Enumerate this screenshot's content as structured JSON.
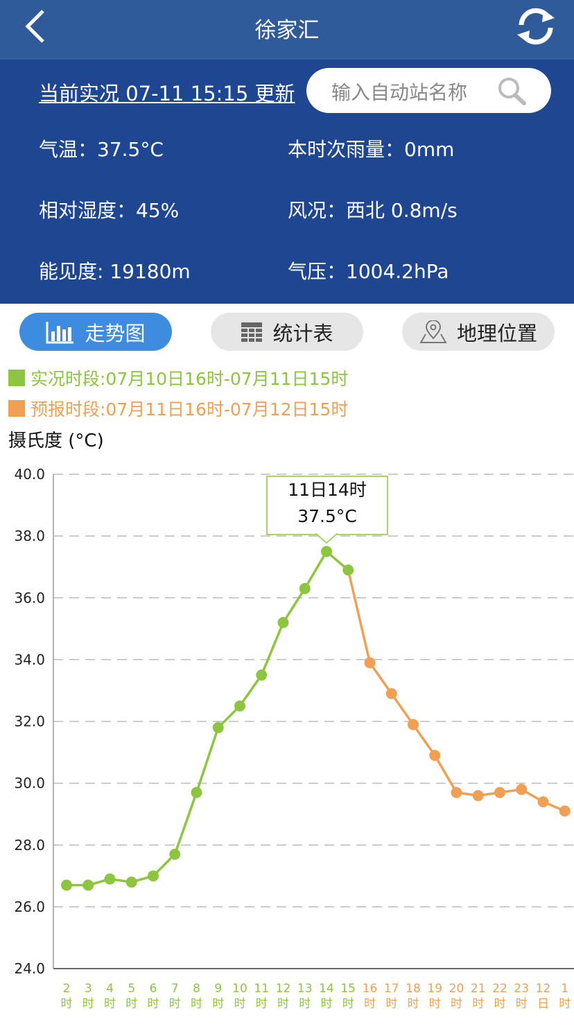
{
  "header": {
    "title": "徐家汇"
  },
  "status": {
    "update": "当前实况 07-11 15:15 更新",
    "search_placeholder": "输入自动站名称"
  },
  "observations": [
    [
      "气温：37.5°C",
      "本时次雨量：0mm"
    ],
    [
      "相对湿度：45%",
      "风况：西北 0.8m/s"
    ],
    [
      "能见度: 19180m",
      "气压：1004.2hPa"
    ]
  ],
  "tabs": [
    "走势图",
    "统计表",
    "地理位置"
  ],
  "chart_data": {
    "type": "line",
    "ylabel": "摄氏度 (°C)",
    "categories": [
      "2\n时",
      "3\n时",
      "4\n时",
      "5\n时",
      "6\n时",
      "7\n时",
      "8\n时",
      "9\n时",
      "10\n时",
      "11\n时",
      "12\n时",
      "13\n时",
      "14\n时",
      "15\n时",
      "16\n时",
      "17\n时",
      "18\n时",
      "19\n时",
      "20\n时",
      "21\n时",
      "22\n时",
      "23\n时",
      "12\n日",
      "1\n时"
    ],
    "series": [
      {
        "name": "实况时段:07月10日16时-07月11日15时",
        "color": "#8dc540",
        "values": [
          26.7,
          26.7,
          26.9,
          26.8,
          27.0,
          27.7,
          29.7,
          31.8,
          32.5,
          33.5,
          35.2,
          36.3,
          37.5,
          36.9,
          null,
          null,
          null,
          null,
          null,
          null,
          null,
          null,
          null,
          null
        ]
      },
      {
        "name": "预报时段:07月11日16时-07月12日15时",
        "color": "#f0a055",
        "values": [
          null,
          null,
          null,
          null,
          null,
          null,
          null,
          null,
          null,
          null,
          null,
          null,
          null,
          null,
          33.9,
          32.9,
          31.9,
          30.9,
          29.7,
          29.6,
          29.7,
          29.8,
          29.4,
          29.1
        ]
      }
    ],
    "ylim": [
      24,
      40
    ],
    "yticks": [
      {
        "value": 24,
        "label": "24.0"
      },
      {
        "value": 26,
        "label": "26.0"
      },
      {
        "value": 28,
        "label": "28.0"
      },
      {
        "value": 30,
        "label": "30.0"
      },
      {
        "value": 32,
        "label": "32.0"
      },
      {
        "value": 34,
        "label": "34.0"
      },
      {
        "value": 36,
        "label": "36.0"
      },
      {
        "value": 38,
        "label": "38.0"
      },
      {
        "value": 40,
        "label": "40.0"
      }
    ],
    "grid": true,
    "annotation": {
      "title": "11日14时",
      "text": "37.5°C"
    }
  }
}
